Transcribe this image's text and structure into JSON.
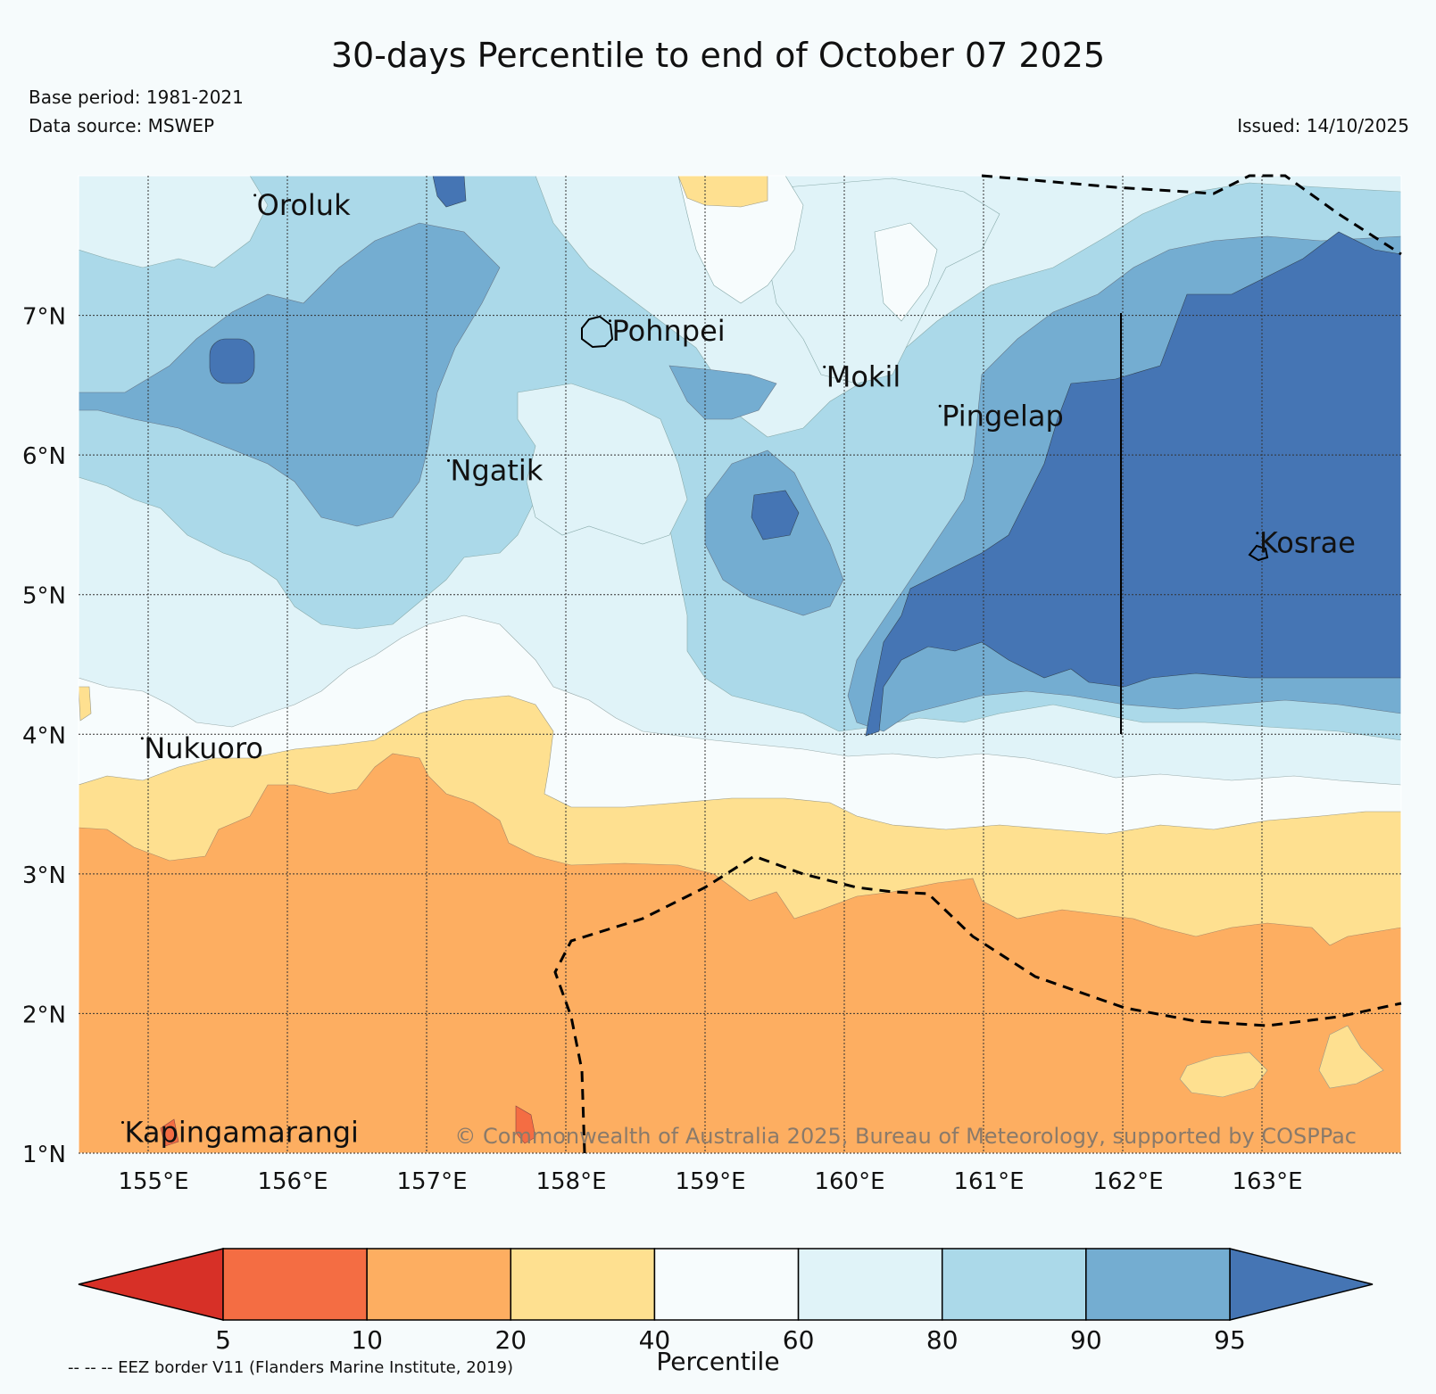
{
  "title": "30-days Percentile to end of October 07 2025",
  "base_period": "Base period: 1981-2021",
  "data_source": "Data source: MSWEP",
  "issued": "Issued: 14/10/2025",
  "copyright": "© Commonwealth of Australia 2025, Bureau of Meteorology, supported by COSPPac",
  "eez_note": "-- -- -- EEZ border V11 (Flanders Marine Institute, 2019)",
  "colorbar_label": "Percentile",
  "map": {
    "lon_range": [
      154.5,
      164.0
    ],
    "lat_range": [
      1.0,
      8.0
    ],
    "lon_ticks": [
      "155°E",
      "156°E",
      "157°E",
      "158°E",
      "159°E",
      "160°E",
      "161°E",
      "162°E",
      "163°E"
    ],
    "lat_ticks": [
      "1°N",
      "2°N",
      "3°N",
      "4°N",
      "5°N",
      "6°N",
      "7°N"
    ],
    "places": [
      {
        "name": "Oroluk",
        "lon": 155.78,
        "lat": 7.72
      },
      {
        "name": "Pohnpei",
        "lon": 158.33,
        "lat": 6.82
      },
      {
        "name": "Mokil",
        "lon": 159.87,
        "lat": 6.49
      },
      {
        "name": "Pingelap",
        "lon": 160.7,
        "lat": 6.21
      },
      {
        "name": "Ngatik",
        "lon": 157.17,
        "lat": 5.82
      },
      {
        "name": "Kosrae",
        "lon": 162.98,
        "lat": 5.3
      },
      {
        "name": "Nukuoro",
        "lon": 154.97,
        "lat": 3.83
      },
      {
        "name": "Kapingamarangi",
        "lon": 154.83,
        "lat": 1.08
      }
    ]
  },
  "colorbar": {
    "bounds": [
      "5",
      "10",
      "20",
      "40",
      "60",
      "80",
      "90",
      "95"
    ],
    "colors": {
      "below5": "#d73027",
      "p5_10": "#f46d43",
      "p10_20": "#fdae61",
      "p20_40": "#fee090",
      "p40_60": "#f7fcfd",
      "p60_80": "#e0f3f8",
      "p80_90": "#abd9e9",
      "p90_95": "#74add1",
      "above95": "#4575b4"
    }
  }
}
